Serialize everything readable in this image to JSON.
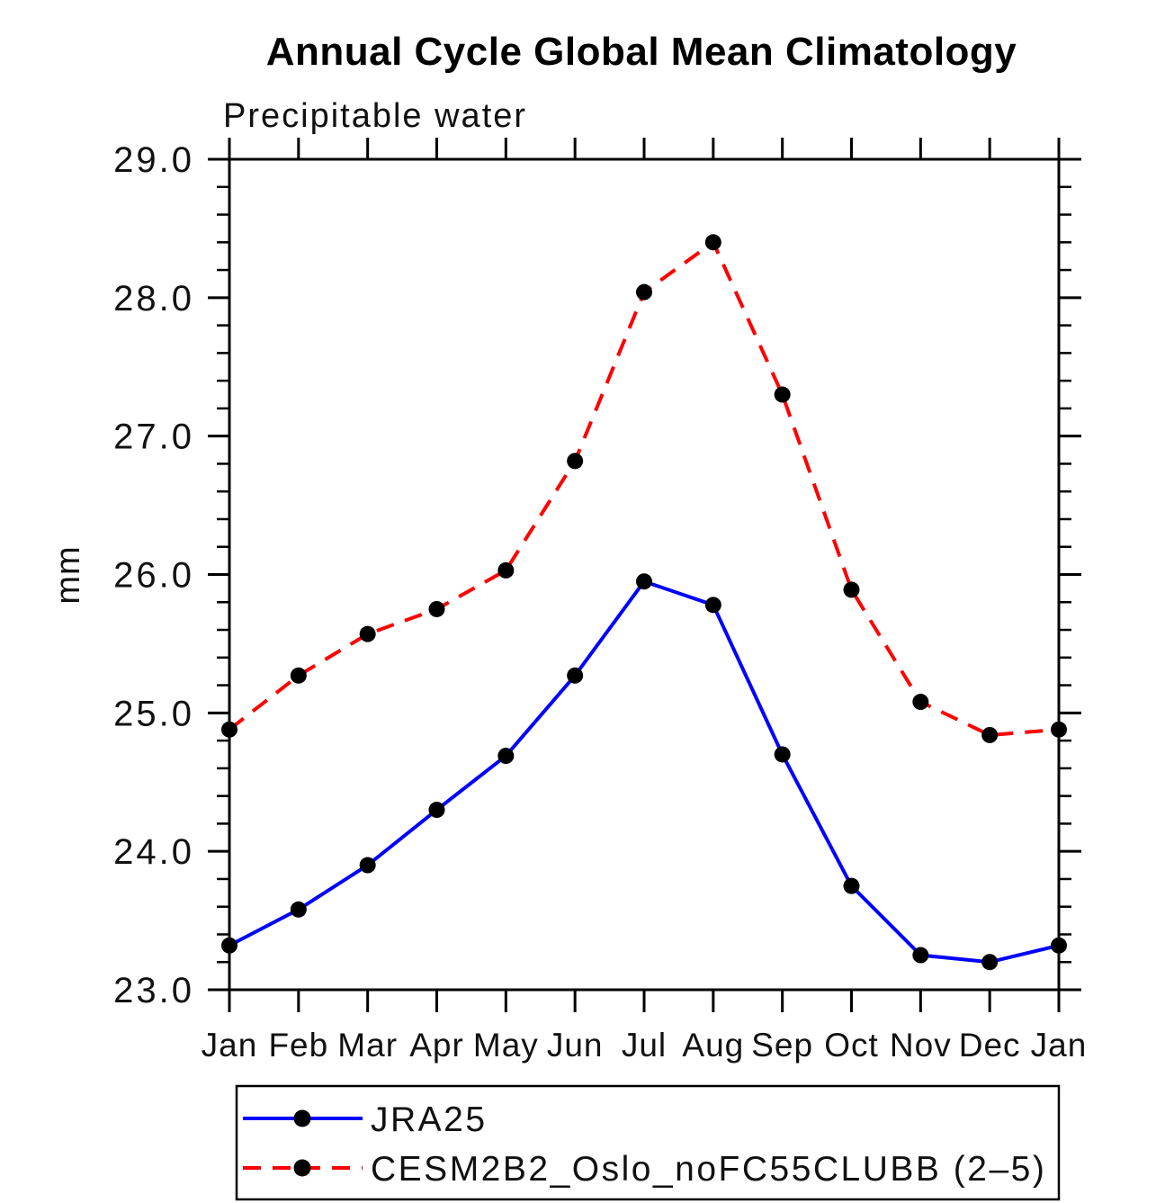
{
  "chart_data": {
    "type": "line",
    "title": "Annual Cycle Global Mean Climatology",
    "subtitle": "Precipitable water",
    "ylabel": "mm",
    "xlabel": "",
    "x_tick_labels": [
      "Jan",
      "Feb",
      "Mar",
      "Apr",
      "May",
      "Jun",
      "Jul",
      "Aug",
      "Sep",
      "Oct",
      "Nov",
      "Dec",
      "Jan"
    ],
    "y_tick_labels": [
      "23.0",
      "24.0",
      "25.0",
      "26.0",
      "27.0",
      "28.0",
      "29.0"
    ],
    "y_major_ticks": [
      23.0,
      24.0,
      25.0,
      26.0,
      27.0,
      28.0,
      29.0
    ],
    "y_minor_step": 0.2,
    "ylim": [
      23.0,
      29.0
    ],
    "grid": false,
    "frame": "box-with-outward-ticks",
    "legend_position": "bottom-left-box",
    "series": [
      {
        "name": "JRA25",
        "color": "#0000ff",
        "line_style": "solid",
        "marker": "filled-circle",
        "marker_color": "#000000",
        "values": [
          23.32,
          23.58,
          23.9,
          24.3,
          24.69,
          25.27,
          25.95,
          25.78,
          24.7,
          23.75,
          23.25,
          23.2,
          23.32
        ]
      },
      {
        "name": "CESM2B2_Oslo_noFC55CLUBB (2–5)",
        "color": "#ff0000",
        "line_style": "dashed",
        "marker": "filled-circle",
        "marker_color": "#000000",
        "values": [
          24.88,
          25.27,
          25.57,
          25.75,
          26.03,
          26.82,
          28.04,
          28.4,
          27.3,
          25.89,
          25.08,
          24.84,
          24.88
        ]
      }
    ]
  },
  "colors": {
    "background": "#ffffff",
    "axis": "#000000",
    "text": "#000000",
    "series_blue": "#0000ff",
    "series_red": "#ff0000",
    "marker": "#000000"
  }
}
